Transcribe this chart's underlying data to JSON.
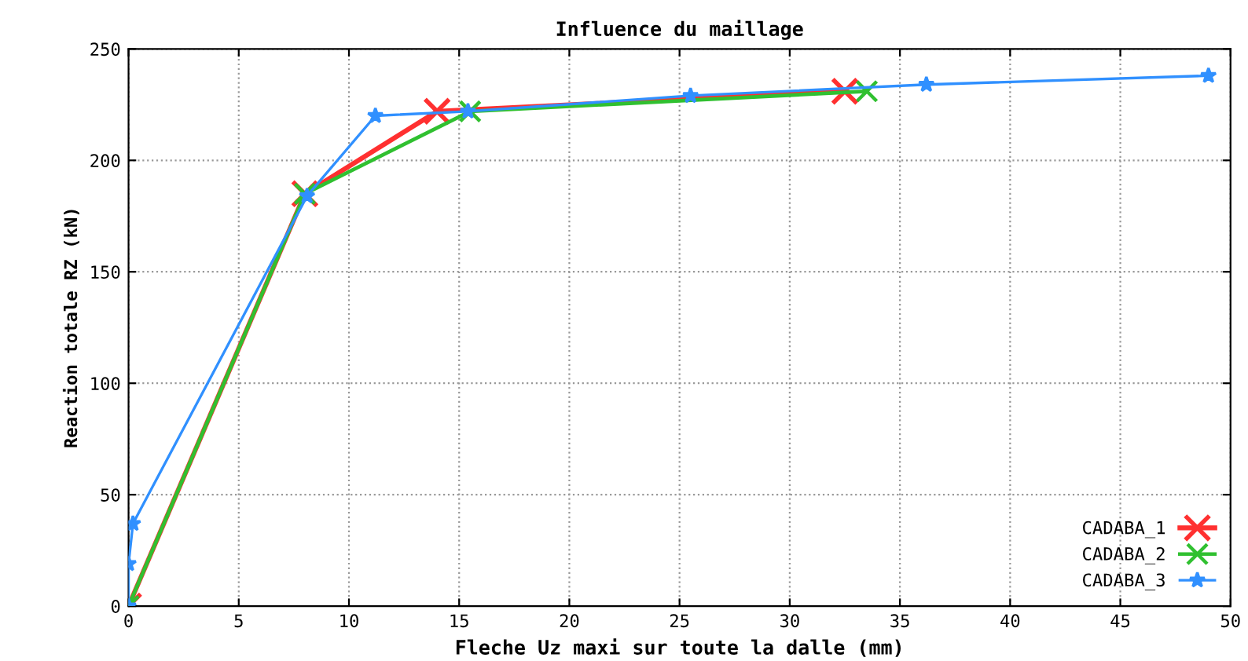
{
  "chart_data": {
    "type": "line",
    "title": "Influence du maillage",
    "xlabel": "Fleche Uz maxi sur toute la dalle (mm)",
    "ylabel": "Reaction totale RZ (kN)",
    "series": [
      {
        "name": "CADABA_1",
        "color": "#ff3030",
        "marker": "cross",
        "x": [
          0,
          8,
          14,
          32.5
        ],
        "values": [
          0,
          185,
          222,
          231
        ]
      },
      {
        "name": "CADABA_2",
        "color": "#30c030",
        "marker": "cross",
        "x": [
          0,
          8,
          15.5,
          33.5
        ],
        "values": [
          0,
          185,
          222,
          231
        ]
      },
      {
        "name": "CADABA_3",
        "color": "#3090ff",
        "marker": "star",
        "x": [
          0,
          0,
          0.2,
          8.1,
          11.2,
          15.4,
          25.5,
          36.2,
          49
        ],
        "values": [
          0,
          19,
          37,
          184,
          220,
          222,
          229,
          234,
          238
        ]
      }
    ],
    "xlim": [
      0,
      50
    ],
    "xticks": [
      0,
      5,
      10,
      15,
      20,
      25,
      30,
      35,
      40,
      45,
      50
    ],
    "ylim": [
      0,
      250
    ],
    "yticks": [
      0,
      50,
      100,
      150,
      200,
      250
    ],
    "grid": true,
    "legend": "bottom right"
  }
}
